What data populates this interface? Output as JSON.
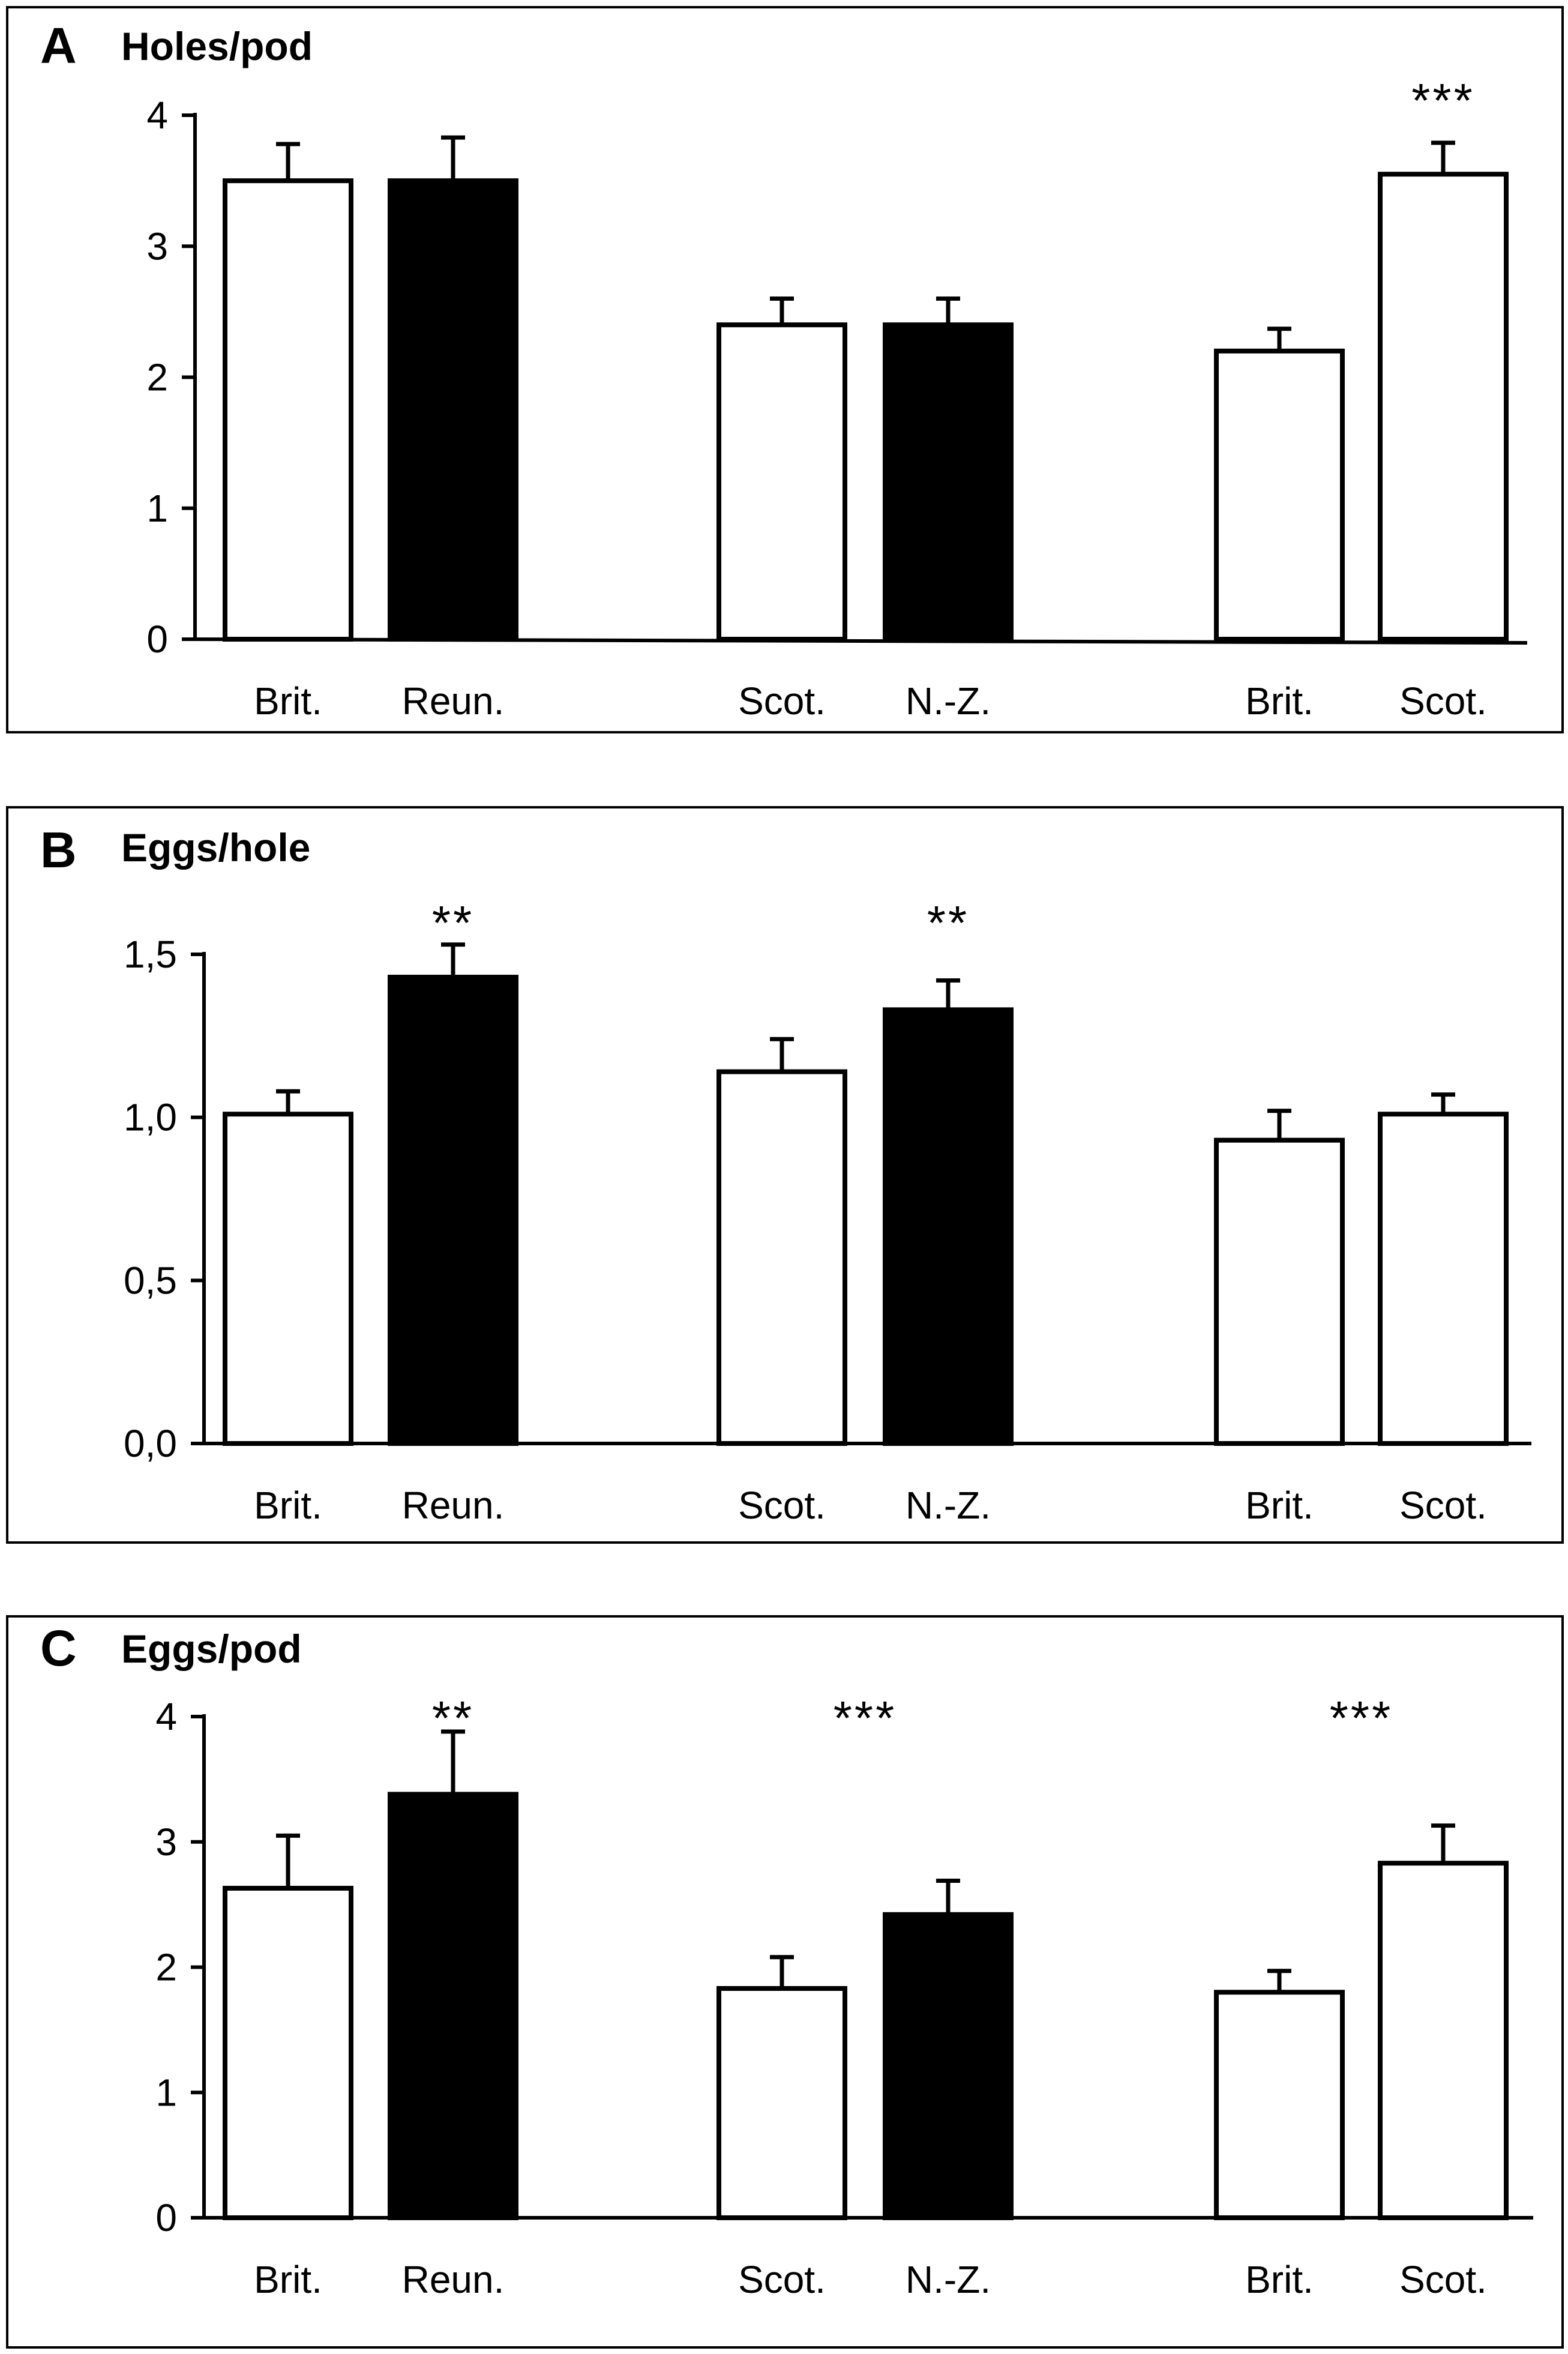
{
  "chart_data": [
    {
      "type": "bar",
      "panel": "A",
      "title": "Holes/pod",
      "categories": [
        "Brit.",
        "Reun.",
        "Scot.",
        "N.-Z.",
        "Brit.",
        "Scot."
      ],
      "values": [
        3.5,
        3.5,
        2.4,
        2.4,
        2.2,
        3.55
      ],
      "errors": [
        0.28,
        0.33,
        0.2,
        0.2,
        0.17,
        0.24
      ],
      "fills": [
        "white",
        "black",
        "white",
        "black",
        "white",
        "white"
      ],
      "ylim": [
        0,
        4
      ],
      "yticks": [
        0,
        1,
        2,
        3,
        4
      ],
      "ytick_labels": [
        "0",
        "1",
        "2",
        "3",
        "4"
      ],
      "annotations": [
        {
          "text": "***",
          "category_index": 5
        }
      ]
    },
    {
      "type": "bar",
      "panel": "B",
      "title": "Eggs/hole",
      "categories": [
        "Brit.",
        "Reun.",
        "Scot.",
        "N.-Z.",
        "Brit.",
        "Scot."
      ],
      "values": [
        1.01,
        1.43,
        1.14,
        1.33,
        0.93,
        1.01
      ],
      "errors": [
        0.07,
        0.1,
        0.1,
        0.09,
        0.09,
        0.06
      ],
      "fills": [
        "white",
        "black",
        "white",
        "black",
        "white",
        "white"
      ],
      "ylim": [
        0,
        1.5
      ],
      "yticks": [
        0,
        0.5,
        1.0,
        1.5
      ],
      "ytick_labels": [
        "0,0",
        "0,5",
        "1,0",
        "1,5"
      ],
      "annotations": [
        {
          "text": "**",
          "category_index": 1
        },
        {
          "text": "**",
          "category_index": 3
        }
      ]
    },
    {
      "type": "bar",
      "panel": "C",
      "title": "Eggs/pod",
      "categories": [
        "Brit.",
        "Reun.",
        "Scot.",
        "N.-Z.",
        "Brit.",
        "Scot."
      ],
      "values": [
        2.63,
        3.38,
        1.83,
        2.42,
        1.8,
        2.83
      ],
      "errors": [
        0.42,
        0.5,
        0.25,
        0.27,
        0.17,
        0.3
      ],
      "fills": [
        "white",
        "black",
        "white",
        "black",
        "white",
        "white"
      ],
      "ylim": [
        0,
        4
      ],
      "yticks": [
        0,
        1,
        2,
        3,
        4
      ],
      "ytick_labels": [
        "0",
        "1",
        "2",
        "3",
        "4"
      ],
      "annotations": [
        {
          "text": "**",
          "category_index": 1
        },
        {
          "text": "***",
          "category_index": 2.5
        },
        {
          "text": "***",
          "category_index": 4.5
        }
      ]
    }
  ]
}
